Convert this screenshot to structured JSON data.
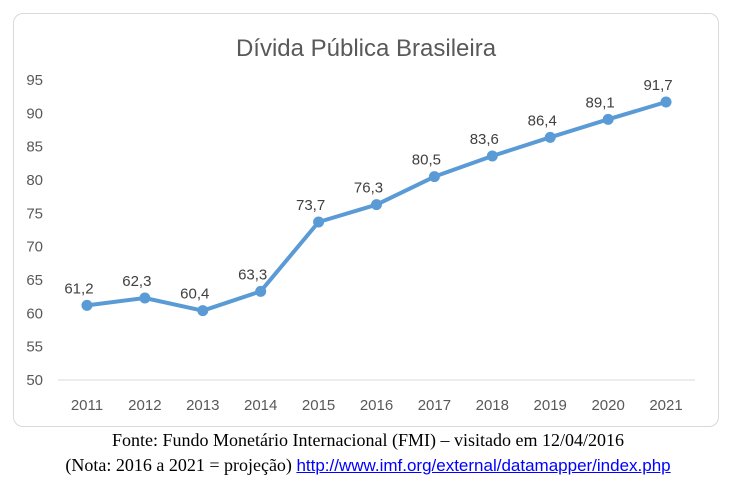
{
  "chart_data": {
    "type": "line",
    "title": "Dívida Pública Brasileira",
    "xlabel": "",
    "ylabel": "",
    "categories": [
      "2011",
      "2012",
      "2013",
      "2014",
      "2015",
      "2016",
      "2017",
      "2018",
      "2019",
      "2020",
      "2021"
    ],
    "values": [
      61.2,
      62.3,
      60.4,
      63.3,
      73.7,
      76.3,
      80.5,
      83.6,
      86.4,
      89.1,
      91.7
    ],
    "data_labels": [
      "61,2",
      "62,3",
      "60,4",
      "63,3",
      "73,7",
      "76,3",
      "80,5",
      "83,6",
      "86,4",
      "89,1",
      "91,7"
    ],
    "ylim": [
      50,
      95
    ],
    "yticks": [
      "50",
      "55",
      "60",
      "65",
      "70",
      "75",
      "80",
      "85",
      "90",
      "95"
    ],
    "ytick_values": [
      50,
      55,
      60,
      65,
      70,
      75,
      80,
      85,
      90,
      95
    ],
    "grid": false,
    "legend": "none",
    "line_color": "#5b9bd5"
  },
  "source": {
    "line1": "Fonte: Fundo Monetário Internacional (FMI) – visitado em 12/04/2016",
    "line2_prefix": "(Nota: 2016 a 2021 = projeção)",
    "link": "http://www.imf.org/external/datamapper/index.php"
  }
}
